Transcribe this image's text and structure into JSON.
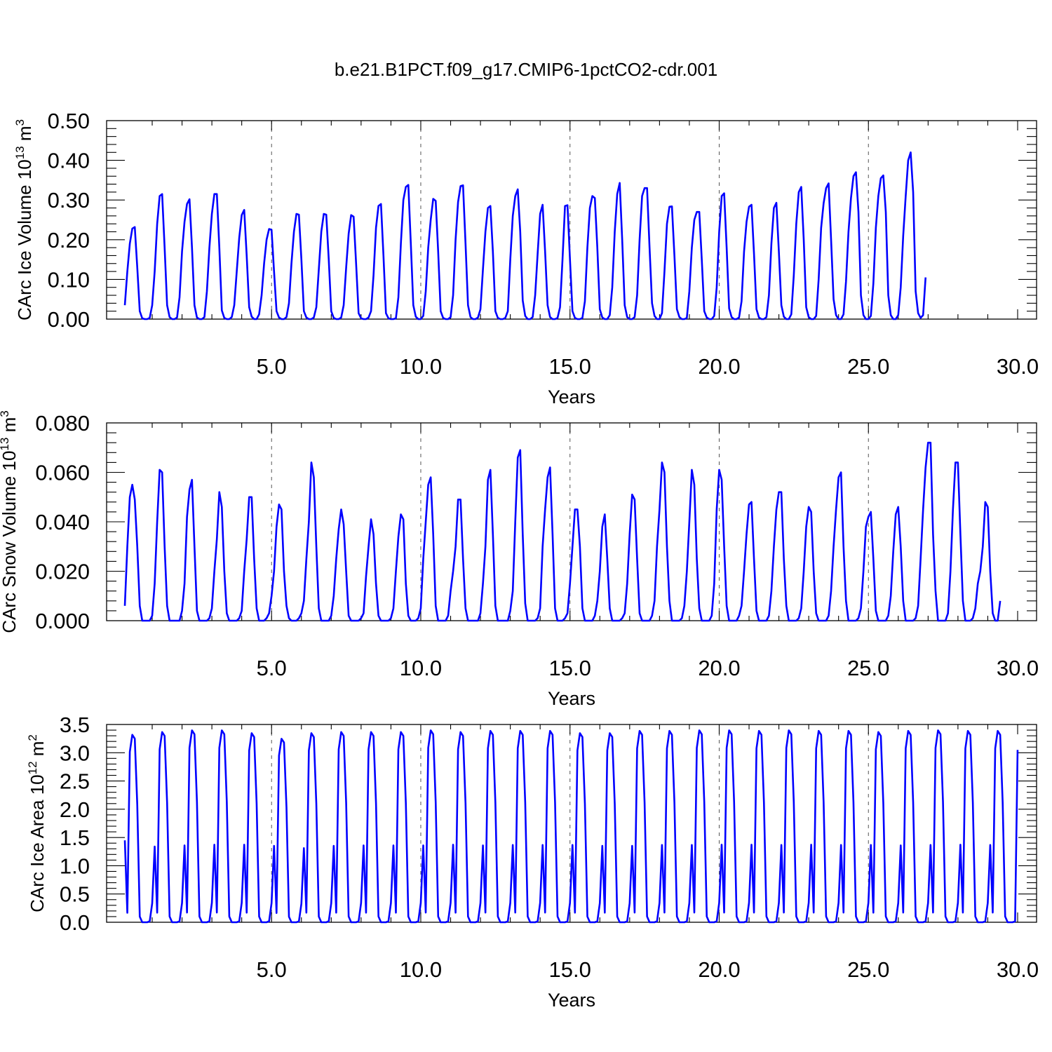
{
  "title": "b.e21.B1PCT.f09_g17.CMIP6-1pctCO2-cdr.001",
  "colors": {
    "line": "#0000ff",
    "axes": "#000000",
    "grid": "#555555"
  },
  "chart_data": [
    {
      "type": "line",
      "id": "ice_volume",
      "ylabel": "CArc Ice Volume 10^13 m^3",
      "ylabel_parts": {
        "name": "CArc Ice Volume 10",
        "exp": "13",
        "unit": " m",
        "unit_exp": "3"
      },
      "xlabel": "Years",
      "xlim": [
        0.0833,
        30.0
      ],
      "ylim": [
        0.0,
        0.5
      ],
      "x_tick_values": [
        5,
        10,
        15,
        20,
        25,
        30
      ],
      "x_tick_labels": [
        "5.0",
        "10.0",
        "15.0",
        "20.0",
        "25.0",
        "30.0"
      ],
      "y_tick_values": [
        0.0,
        0.1,
        0.2,
        0.3,
        0.4,
        0.5
      ],
      "y_tick_labels": [
        "0.00",
        "0.10",
        "0.20",
        "0.30",
        "0.40",
        "0.50"
      ],
      "vgrid_at": [
        5,
        10,
        15,
        20,
        25
      ],
      "x_start": 0.0833,
      "x_step": 0.08333,
      "series": [
        {
          "name": "",
          "values": [
            0.035,
            0.12,
            0.19,
            0.228,
            0.232,
            0.13,
            0.02,
            0.002,
            0.0,
            0.0,
            0.003,
            0.035,
            0.12,
            0.24,
            0.31,
            0.315,
            0.18,
            0.035,
            0.005,
            0.0,
            0.0,
            0.004,
            0.055,
            0.17,
            0.245,
            0.29,
            0.302,
            0.18,
            0.035,
            0.004,
            0.0,
            0.0,
            0.005,
            0.07,
            0.18,
            0.265,
            0.315,
            0.315,
            0.18,
            0.022,
            0.003,
            0.0,
            0.0,
            0.005,
            0.035,
            0.12,
            0.205,
            0.262,
            0.275,
            0.16,
            0.03,
            0.006,
            0.0,
            0.0,
            0.012,
            0.06,
            0.14,
            0.2,
            0.227,
            0.225,
            0.12,
            0.02,
            0.004,
            0.0,
            0.0,
            0.005,
            0.04,
            0.14,
            0.22,
            0.265,
            0.263,
            0.15,
            0.02,
            0.004,
            0.0,
            0.0,
            0.004,
            0.03,
            0.125,
            0.22,
            0.265,
            0.263,
            0.15,
            0.02,
            0.003,
            0.0,
            0.0,
            0.004,
            0.035,
            0.13,
            0.215,
            0.262,
            0.258,
            0.14,
            0.015,
            0.002,
            0.0,
            0.0,
            0.004,
            0.02,
            0.11,
            0.23,
            0.285,
            0.29,
            0.16,
            0.015,
            0.002,
            0.0,
            0.0,
            0.002,
            0.055,
            0.19,
            0.3,
            0.333,
            0.338,
            0.19,
            0.035,
            0.006,
            0.0,
            0.0,
            0.008,
            0.07,
            0.18,
            0.25,
            0.303,
            0.298,
            0.17,
            0.02,
            0.003,
            0.0,
            0.0,
            0.005,
            0.06,
            0.2,
            0.295,
            0.335,
            0.337,
            0.19,
            0.035,
            0.005,
            0.0,
            0.0,
            0.004,
            0.025,
            0.125,
            0.22,
            0.28,
            0.285,
            0.17,
            0.02,
            0.003,
            0.0,
            0.0,
            0.003,
            0.02,
            0.15,
            0.26,
            0.31,
            0.327,
            0.22,
            0.047,
            0.008,
            0.0,
            0.0,
            0.005,
            0.06,
            0.165,
            0.265,
            0.288,
            0.17,
            0.035,
            0.005,
            0.0,
            0.0,
            0.003,
            0.03,
            0.15,
            0.285,
            0.287,
            0.15,
            0.02,
            0.003,
            0.0,
            0.0,
            0.003,
            0.045,
            0.18,
            0.28,
            0.31,
            0.305,
            0.18,
            0.025,
            0.004,
            0.0,
            0.0,
            0.01,
            0.08,
            0.22,
            0.315,
            0.343,
            0.2,
            0.035,
            0.005,
            0.0,
            0.0,
            0.005,
            0.06,
            0.2,
            0.31,
            0.33,
            0.33,
            0.18,
            0.04,
            0.008,
            0.0,
            0.0,
            0.015,
            0.12,
            0.24,
            0.283,
            0.284,
            0.16,
            0.025,
            0.005,
            0.0,
            0.0,
            0.003,
            0.07,
            0.18,
            0.25,
            0.27,
            0.27,
            0.15,
            0.02,
            0.004,
            0.0,
            0.0,
            0.008,
            0.08,
            0.22,
            0.31,
            0.317,
            0.18,
            0.027,
            0.005,
            0.0,
            0.0,
            0.004,
            0.045,
            0.17,
            0.245,
            0.283,
            0.288,
            0.165,
            0.025,
            0.004,
            0.0,
            0.0,
            0.005,
            0.06,
            0.19,
            0.28,
            0.293,
            0.17,
            0.035,
            0.006,
            0.0,
            0.0,
            0.012,
            0.11,
            0.24,
            0.32,
            0.333,
            0.2,
            0.03,
            0.005,
            0.0,
            0.0,
            0.008,
            0.1,
            0.23,
            0.292,
            0.33,
            0.342,
            0.2,
            0.05,
            0.01,
            0.0,
            0.0,
            0.012,
            0.095,
            0.22,
            0.305,
            0.36,
            0.37,
            0.27,
            0.06,
            0.01,
            0.0,
            0.0,
            0.008,
            0.09,
            0.23,
            0.31,
            0.355,
            0.362,
            0.27,
            0.06,
            0.01,
            0.0,
            0.0,
            0.01,
            0.08,
            0.21,
            0.31,
            0.4,
            0.42,
            0.32,
            0.07,
            0.015,
            0.003,
            0.01,
            0.105
          ]
        }
      ]
    },
    {
      "type": "line",
      "id": "snow_volume",
      "ylabel": "CArc Snow Volume 10^13 m^3",
      "ylabel_parts": {
        "name": "CArc Snow Volume 10",
        "exp": "13",
        "unit": " m",
        "unit_exp": "3"
      },
      "xlabel": "Years",
      "xlim": [
        0.0833,
        30.0
      ],
      "ylim": [
        0.0,
        0.08
      ],
      "x_tick_values": [
        5,
        10,
        15,
        20,
        25,
        30
      ],
      "x_tick_labels": [
        "5.0",
        "10.0",
        "15.0",
        "20.0",
        "25.0",
        "30.0"
      ],
      "y_tick_values": [
        0.0,
        0.02,
        0.04,
        0.06,
        0.08
      ],
      "y_tick_labels": [
        "0.000",
        "0.020",
        "0.040",
        "0.060",
        "0.080"
      ],
      "vgrid_at": [
        5,
        10,
        15,
        20,
        25
      ],
      "x_start": 0.0833,
      "x_step": 0.08333,
      "series": [
        {
          "name": "",
          "values": [
            0.006,
            0.03,
            0.05,
            0.055,
            0.049,
            0.03,
            0.006,
            0.0,
            0.0,
            0.0,
            0.0,
            0.002,
            0.015,
            0.04,
            0.061,
            0.06,
            0.03,
            0.006,
            0.0,
            0.0,
            0.0,
            0.0,
            0.0,
            0.004,
            0.015,
            0.042,
            0.053,
            0.057,
            0.03,
            0.004,
            0.0,
            0.0,
            0.0,
            0.0,
            0.001,
            0.005,
            0.02,
            0.033,
            0.052,
            0.046,
            0.02,
            0.003,
            0.0,
            0.0,
            0.0,
            0.0,
            0.001,
            0.004,
            0.02,
            0.033,
            0.05,
            0.05,
            0.025,
            0.005,
            0.0,
            0.0,
            0.0,
            0.001,
            0.003,
            0.01,
            0.02,
            0.038,
            0.047,
            0.045,
            0.02,
            0.006,
            0.001,
            0.0,
            0.0,
            0.0,
            0.001,
            0.003,
            0.008,
            0.025,
            0.04,
            0.064,
            0.058,
            0.03,
            0.005,
            0.0,
            0.0,
            0.0,
            0.0,
            0.002,
            0.01,
            0.025,
            0.037,
            0.045,
            0.039,
            0.02,
            0.002,
            0.0,
            0.0,
            0.0,
            0.0,
            0.001,
            0.003,
            0.018,
            0.03,
            0.041,
            0.035,
            0.015,
            0.002,
            0.0,
            0.0,
            0.0,
            0.0,
            0.001,
            0.005,
            0.02,
            0.034,
            0.043,
            0.041,
            0.015,
            0.002,
            0.0,
            0.0,
            0.0,
            0.001,
            0.005,
            0.025,
            0.04,
            0.055,
            0.058,
            0.035,
            0.006,
            0.0,
            0.0,
            0.0,
            0.0,
            0.002,
            0.012,
            0.02,
            0.03,
            0.049,
            0.049,
            0.025,
            0.005,
            0.0,
            0.0,
            0.0,
            0.0,
            0.0,
            0.003,
            0.015,
            0.03,
            0.057,
            0.061,
            0.035,
            0.006,
            0.0,
            0.0,
            0.0,
            0.0,
            0.0,
            0.004,
            0.012,
            0.04,
            0.066,
            0.069,
            0.035,
            0.007,
            0.0,
            0.0,
            0.0,
            0.0,
            0.001,
            0.005,
            0.03,
            0.045,
            0.058,
            0.062,
            0.035,
            0.005,
            0.0,
            0.0,
            0.0,
            0.001,
            0.003,
            0.015,
            0.03,
            0.045,
            0.045,
            0.03,
            0.005,
            0.0,
            0.0,
            0.0,
            0.0,
            0.002,
            0.008,
            0.02,
            0.038,
            0.043,
            0.025,
            0.005,
            0.0,
            0.0,
            0.0,
            0.0,
            0.001,
            0.003,
            0.015,
            0.035,
            0.051,
            0.049,
            0.025,
            0.003,
            0.0,
            0.0,
            0.0,
            0.0,
            0.002,
            0.008,
            0.03,
            0.045,
            0.064,
            0.06,
            0.03,
            0.008,
            0.0,
            0.0,
            0.0,
            0.0,
            0.001,
            0.006,
            0.02,
            0.04,
            0.061,
            0.055,
            0.025,
            0.005,
            0.0,
            0.0,
            0.0,
            0.0,
            0.002,
            0.015,
            0.045,
            0.061,
            0.057,
            0.03,
            0.006,
            0.0,
            0.0,
            0.0,
            0.0,
            0.002,
            0.006,
            0.02,
            0.035,
            0.047,
            0.048,
            0.025,
            0.004,
            0.0,
            0.0,
            0.0,
            0.0,
            0.002,
            0.012,
            0.03,
            0.045,
            0.052,
            0.052,
            0.025,
            0.006,
            0.0,
            0.0,
            0.0,
            0.0,
            0.001,
            0.005,
            0.02,
            0.038,
            0.046,
            0.044,
            0.02,
            0.003,
            0.0,
            0.0,
            0.0,
            0.0,
            0.002,
            0.012,
            0.03,
            0.045,
            0.058,
            0.06,
            0.03,
            0.008,
            0.0,
            0.0,
            0.0,
            0.0,
            0.001,
            0.005,
            0.02,
            0.038,
            0.042,
            0.044,
            0.025,
            0.004,
            0.0,
            0.0,
            0.0,
            0.0,
            0.002,
            0.01,
            0.028,
            0.043,
            0.046,
            0.03,
            0.008,
            0.0,
            0.0,
            0.0,
            0.0,
            0.001,
            0.006,
            0.025,
            0.045,
            0.062,
            0.072,
            0.072,
            0.035,
            0.012,
            0.0,
            0.0,
            0.0,
            0.0,
            0.003,
            0.02,
            0.045,
            0.064,
            0.064,
            0.035,
            0.008,
            0.0,
            0.0,
            0.0,
            0.001,
            0.005,
            0.015,
            0.02,
            0.03,
            0.048,
            0.046,
            0.02,
            0.003,
            0.0,
            0.0,
            0.008
          ]
        }
      ]
    },
    {
      "type": "line",
      "id": "ice_area",
      "ylabel": "CArc Ice Area 10^12 m^2",
      "ylabel_parts": {
        "name": "CArc Ice Area 10",
        "exp": "12",
        "unit": " m",
        "unit_exp": "2"
      },
      "xlabel": "Years",
      "xlim": [
        0.0833,
        30.0
      ],
      "ylim": [
        0.0,
        3.5
      ],
      "x_tick_values": [
        5,
        10,
        15,
        20,
        25,
        30
      ],
      "x_tick_labels": [
        "5.0",
        "10.0",
        "15.0",
        "20.0",
        "25.0",
        "30.0"
      ],
      "y_tick_values": [
        0.0,
        0.5,
        1.0,
        1.5,
        2.0,
        2.5,
        3.0,
        3.5
      ],
      "y_tick_labels": [
        "0.0",
        "0.5",
        "1.0",
        "1.5",
        "2.0",
        "2.5",
        "3.0",
        "3.5"
      ],
      "vgrid_at": [
        5,
        10,
        15,
        20,
        25
      ],
      "x_start": 0.0833,
      "x_step": 0.08333,
      "cycle_start_index": 1,
      "cycle_shape": [
        0.05,
        0.9,
        0.99,
        0.97,
        0.62,
        0.03,
        0.0,
        0.0,
        0.0,
        0.005,
        0.1,
        0.4
      ],
      "cycle_peaks": [
        3.35,
        3.4,
        3.43,
        3.43,
        3.38,
        3.28,
        3.38,
        3.4,
        3.4,
        3.4,
        3.43,
        3.4,
        3.42,
        3.42,
        3.42,
        3.38,
        3.38,
        3.42,
        3.42,
        3.43,
        3.43,
        3.42,
        3.43,
        3.42,
        3.42,
        3.4,
        3.42,
        3.43,
        3.42,
        3.42
      ],
      "first_value": 1.45,
      "last_value": 3.05,
      "series": [
        {
          "name": ""
        }
      ]
    }
  ]
}
